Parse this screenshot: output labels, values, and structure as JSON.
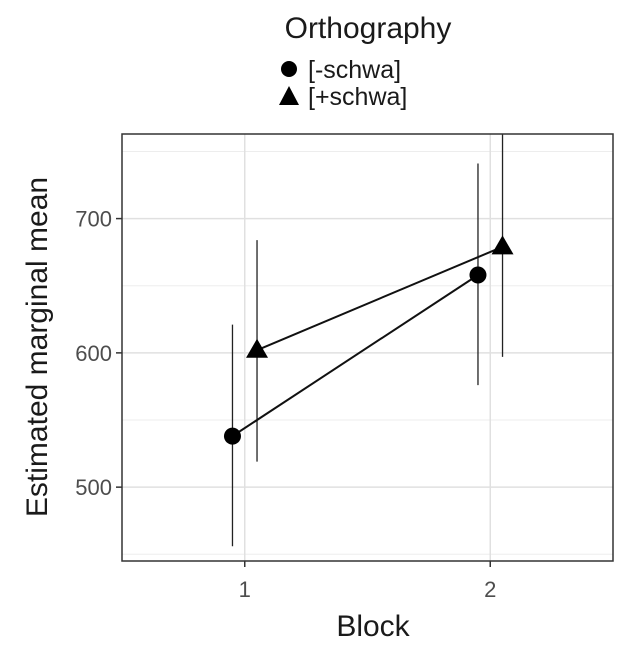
{
  "chart_data": {
    "type": "line",
    "title": "",
    "xlabel": "Block",
    "ylabel": "Estimated marginal mean",
    "categories": [
      "1",
      "2"
    ],
    "xlim": [
      0.5,
      2.5
    ],
    "ylim": [
      445,
      763
    ],
    "yticks": [
      500,
      600,
      700
    ],
    "grid": true,
    "legend": {
      "title": "Orthography",
      "position": "top",
      "entries": [
        {
          "label": "[-schwa]",
          "marker": "circle"
        },
        {
          "label": "[+schwa]",
          "marker": "triangle"
        }
      ]
    },
    "series": [
      {
        "name": "[-schwa]",
        "marker": "circle",
        "values": [
          538,
          658
        ],
        "lower": [
          456,
          576
        ],
        "upper": [
          621,
          741
        ]
      },
      {
        "name": "[+schwa]",
        "marker": "triangle",
        "values": [
          602,
          679
        ],
        "lower": [
          519,
          597
        ],
        "upper": [
          684,
          763
        ]
      }
    ]
  }
}
